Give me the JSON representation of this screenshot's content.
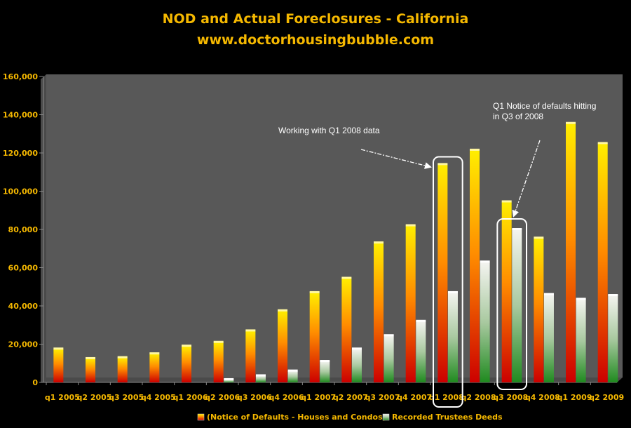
{
  "chart_data": {
    "type": "bar",
    "title": "NOD and Actual Foreclosures - California",
    "subtitle": "www.doctorhousingbubble.com",
    "categories": [
      "q1 2005",
      "q2 2005",
      "q3 2005",
      "q4 2005",
      "q1 2006",
      "q2 2006",
      "q3 2006",
      "q4 2006",
      "q1 2007",
      "q2 2007",
      "q3 2007",
      "q4 2007",
      "q1 2008",
      "q2 2008",
      "q3 2008",
      "q4 2008",
      "q1 2009",
      "q2 2009"
    ],
    "series": [
      {
        "name": "(Notice of Defaults - Houses and Condos)",
        "values": [
          17500,
          12500,
          13000,
          15000,
          19000,
          21000,
          27000,
          37500,
          47000,
          54500,
          73000,
          82000,
          114000,
          121500,
          94500,
          75500,
          135500,
          125000
        ]
      },
      {
        "name": "Recorded Trustees Deeds",
        "values": [
          0,
          0,
          0,
          0,
          0,
          1500,
          3500,
          6000,
          11000,
          17500,
          24500,
          32000,
          47000,
          63000,
          80000,
          46000,
          43500,
          45500
        ]
      }
    ],
    "ylim": [
      0,
      160000
    ],
    "yticks": [
      0,
      20000,
      40000,
      60000,
      80000,
      100000,
      120000,
      140000,
      160000
    ],
    "ytick_labels": [
      "0",
      "20,000",
      "40,000",
      "60,000",
      "80,000",
      "100,000",
      "120,000",
      "140,000",
      "160,000"
    ],
    "grid": false,
    "legend_position": "bottom",
    "annotations": [
      {
        "text": "Working with Q1 2008 data",
        "target_category": "q1 2008"
      },
      {
        "text_lines": [
          "Q1 Notice of defaults hitting",
          "in Q3 of 2008"
        ],
        "target_category": "q3 2008"
      }
    ],
    "colors": {
      "plot_background": "#575757",
      "nod_top": "#ffee00",
      "nod_mid": "#ff8c00",
      "nod_bottom": "#cc0000",
      "deeds_top": "#f4f4f0",
      "deeds_bottom": "#1f8a1f",
      "title": "#f5b800",
      "axis_text": "#f5b800"
    }
  }
}
